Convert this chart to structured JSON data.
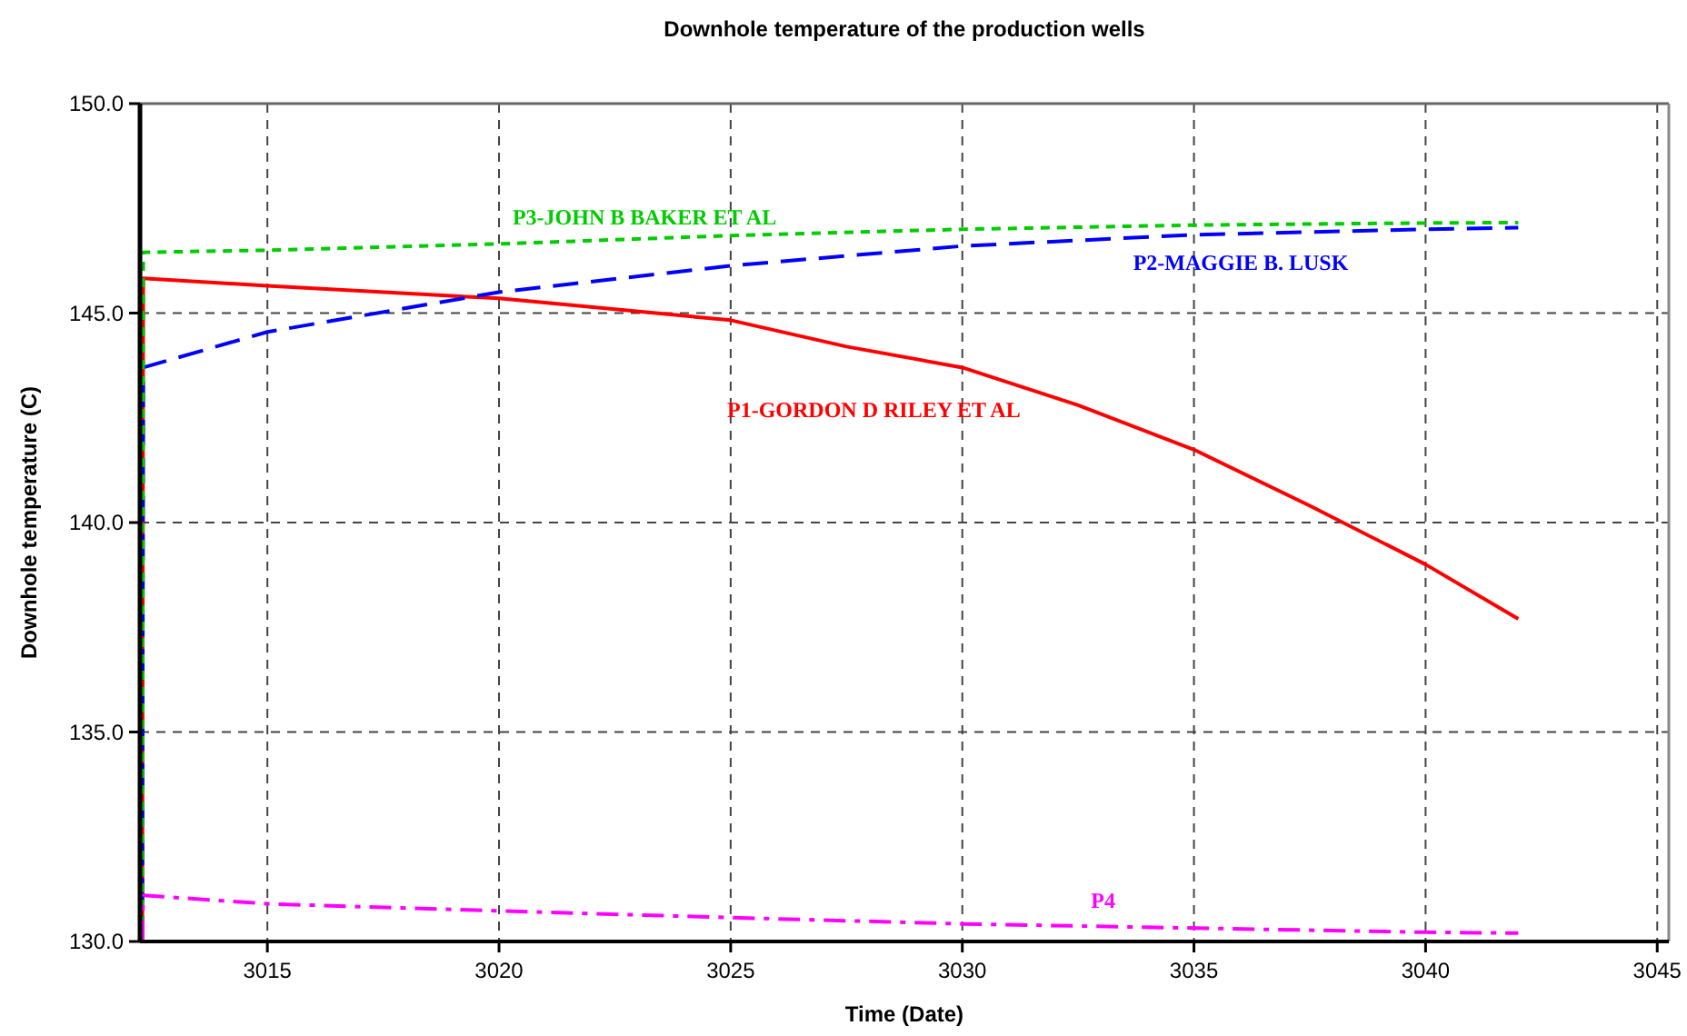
{
  "chart_data": {
    "type": "line",
    "title": "Downhole temperature of the production wells",
    "xlabel": "Time (Date)",
    "ylabel": "Downhole temperature (C)",
    "xlim": [
      3012.25,
      3045.25
    ],
    "xticks": [
      3015,
      3020,
      3025,
      3030,
      3035,
      3040,
      3045
    ],
    "ylim": [
      130,
      150
    ],
    "yticks": [
      {
        "value": 130,
        "label": "130.0"
      },
      {
        "value": 135,
        "label": "135.0"
      },
      {
        "value": 140,
        "label": "140.0"
      },
      {
        "value": 145,
        "label": "145.0"
      },
      {
        "value": 150,
        "label": "150.0"
      }
    ],
    "grid": true,
    "marker": "none",
    "series": [
      {
        "name": "P1-GORDON D RILEY ET AL",
        "color": "#ff0000",
        "line_style": "solid",
        "x": [
          3012.3,
          3012.32,
          3015,
          3020,
          3025,
          3027.5,
          3030,
          3032.5,
          3035,
          3037.5,
          3040,
          3042
        ],
        "values": [
          130,
          145.83,
          145.65,
          145.35,
          144.83,
          144.2,
          143.7,
          142.8,
          141.74,
          140.4,
          139.0,
          137.7
        ]
      },
      {
        "name": "P2-MAGGIE B. LUSK",
        "color": "#0000ff",
        "line_style": "dashed",
        "x": [
          3012.3,
          3012.32,
          3015,
          3020,
          3025,
          3030,
          3035,
          3040,
          3042
        ],
        "values": [
          130,
          143.7,
          144.55,
          145.5,
          146.13,
          146.6,
          146.87,
          147.0,
          147.04
        ]
      },
      {
        "name": "P3-JOHN B BAKER ET AL",
        "color": "#00cc00",
        "line_style": "dotted",
        "x": [
          3012.3,
          3012.32,
          3015,
          3020,
          3025,
          3030,
          3035,
          3040,
          3042
        ],
        "values": [
          130,
          146.45,
          146.5,
          146.65,
          146.85,
          147.0,
          147.1,
          147.15,
          147.16
        ]
      },
      {
        "name": "P4",
        "color": "#ff00ff",
        "line_style": "dashdot",
        "x": [
          3012.3,
          3012.32,
          3015,
          3020,
          3025,
          3030,
          3035,
          3040,
          3042
        ],
        "values": [
          130,
          131.1,
          130.9,
          130.73,
          130.57,
          130.42,
          130.32,
          130.22,
          130.2
        ]
      }
    ]
  }
}
